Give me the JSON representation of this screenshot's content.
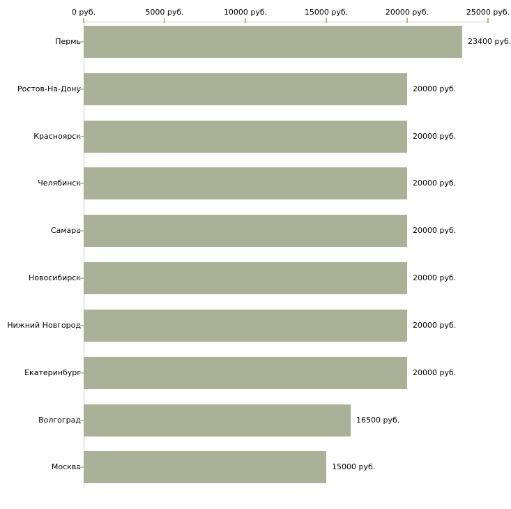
{
  "chart_data": {
    "type": "bar",
    "orientation": "horizontal",
    "title": "",
    "categories": [
      "Пермь",
      "Ростов-На-Дону",
      "Красноярск",
      "Челябинск",
      "Самара",
      "Новосибирск",
      "Нижний Новгород",
      "Екатеринбург",
      "Волгоград",
      "Москва"
    ],
    "values": [
      23400,
      20000,
      20000,
      20000,
      20000,
      20000,
      20000,
      20000,
      16500,
      15000
    ],
    "value_labels": [
      "23400 руб.",
      "20000 руб.",
      "20000 руб.",
      "20000 руб.",
      "20000 руб.",
      "20000 руб.",
      "20000 руб.",
      "20000 руб.",
      "16500 руб.",
      "15000 руб."
    ],
    "x_axis": {
      "position": "top",
      "min": 0,
      "max": 25000,
      "ticks": [
        0,
        5000,
        10000,
        15000,
        20000,
        25000
      ],
      "tick_labels": [
        "0 руб.",
        "5000 руб.",
        "10000 руб.",
        "15000 руб.",
        "20000 руб.",
        "25000 руб."
      ]
    },
    "legend": "none",
    "grid": false,
    "colors": {
      "bar": "#aab196",
      "axis_line": "#c8c8c8",
      "x_tick_mark": "#b6b68c",
      "y_tick_mark": "#c2c2a2",
      "text": "#000000",
      "background": "#ffffff"
    }
  }
}
